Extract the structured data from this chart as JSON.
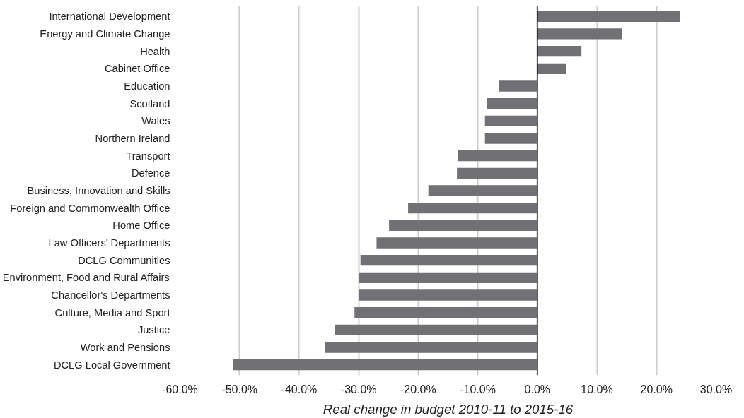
{
  "chart_data": {
    "type": "bar",
    "orientation": "horizontal",
    "xlabel": "Real change in budget 2010-11 to 2015-16",
    "categories": [
      "International Development",
      "Energy and Climate Change",
      "Health",
      "Cabinet Office",
      "Education",
      "Scotland",
      "Wales",
      "Northern Ireland",
      "Transport",
      "Defence",
      "Business, Innovation and Skills",
      "Foreign and Commonwealth Office",
      "Home Office",
      "Law Officers' Departments",
      "DCLG Communities",
      "Environment, Food and Rural Affairs",
      "Chancellor's Departments",
      "Culture, Media and Sport",
      "Justice",
      "Work and Pensions",
      "DCLG Local Government"
    ],
    "values": [
      24.0,
      14.2,
      7.4,
      4.8,
      -6.4,
      -8.5,
      -8.8,
      -8.8,
      -13.3,
      -13.5,
      -18.3,
      -21.7,
      -24.9,
      -27.0,
      -29.7,
      -29.9,
      -29.9,
      -30.7,
      -34.0,
      -35.7,
      -51.1
    ],
    "color": "#717175",
    "xlim": [
      -60,
      30
    ],
    "xticks": [
      {
        "value": -60,
        "label": "-60.0%"
      },
      {
        "value": -50,
        "label": "-50.0%"
      },
      {
        "value": -40,
        "label": "-40.0%"
      },
      {
        "value": -30,
        "label": "-30.0%"
      },
      {
        "value": -20,
        "label": "-20.0%"
      },
      {
        "value": -10,
        "label": "-10.0%"
      },
      {
        "value": 0,
        "label": "0.0%"
      },
      {
        "value": 10,
        "label": "10.0%"
      },
      {
        "value": 20,
        "label": "20.0%"
      },
      {
        "value": 30,
        "label": "30.0%"
      }
    ],
    "grid": "x"
  }
}
